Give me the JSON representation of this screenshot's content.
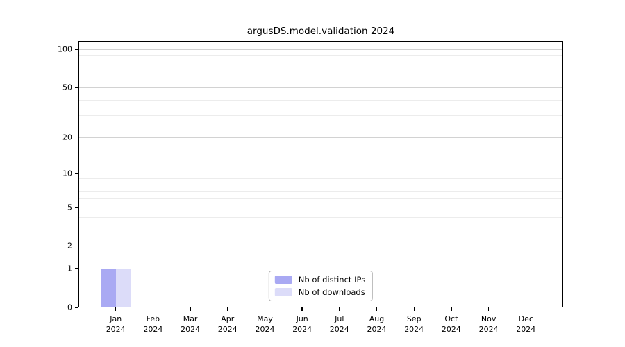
{
  "title": "argusDS.model.validation 2024",
  "colors": {
    "background": "#ffffff",
    "spine": "#000000",
    "major_grid": "#d2d2d2",
    "minor_grid": "#ececec",
    "tick_text": "#000000",
    "legend_border": "#b0b0b0",
    "bar_distinct_ips": "#a9a9f3",
    "bar_downloads": "#dcdcf9"
  },
  "chart_data": {
    "type": "bar",
    "title": "argusDS.model.validation 2024",
    "categories": [
      "Jan 2024",
      "Feb 2024",
      "Mar 2024",
      "Apr 2024",
      "May 2024",
      "Jun 2024",
      "Jul 2024",
      "Aug 2024",
      "Sep 2024",
      "Oct 2024",
      "Nov 2024",
      "Dec 2024"
    ],
    "series": [
      {
        "name": "Nb of distinct IPs",
        "color": "#a9a9f3",
        "values": [
          1,
          0,
          0,
          0,
          0,
          0,
          0,
          0,
          0,
          0,
          0,
          0
        ]
      },
      {
        "name": "Nb of downloads",
        "color": "#dcdcf9",
        "values": [
          1,
          0,
          0,
          0,
          0,
          0,
          0,
          0,
          0,
          0,
          0,
          0
        ]
      }
    ],
    "xlabel": "",
    "ylabel": "",
    "yscale": "log1p",
    "ylim": [
      0,
      115
    ],
    "yticks_major": [
      0,
      1,
      2,
      5,
      10,
      20,
      50,
      100
    ],
    "yticks_minor": [
      3,
      4,
      6,
      7,
      8,
      9,
      30,
      40,
      60,
      70,
      80,
      90
    ],
    "grid": "both",
    "legend_position": "lower center",
    "bar_width_fraction": 0.4
  }
}
